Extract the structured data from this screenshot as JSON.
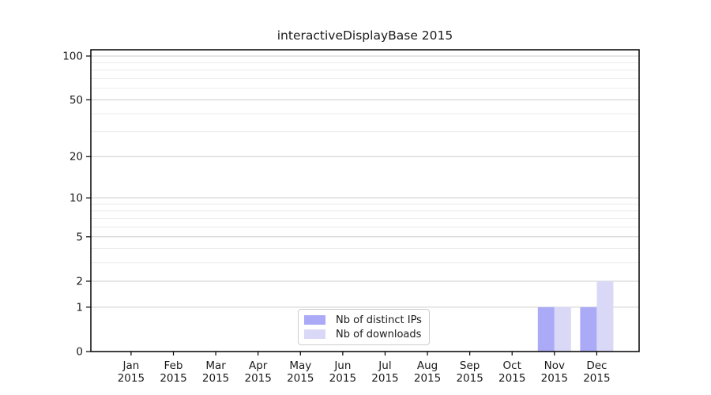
{
  "chart_data": {
    "type": "bar",
    "title": "interactiveDisplayBase 2015",
    "categories": [
      "Jan",
      "Feb",
      "Mar",
      "Apr",
      "May",
      "Jun",
      "Jul",
      "Aug",
      "Sep",
      "Oct",
      "Nov",
      "Dec"
    ],
    "category_year": "2015",
    "series": [
      {
        "name": "Nb of distinct IPs",
        "color": "#aaaaf7",
        "values": [
          0,
          0,
          0,
          0,
          0,
          0,
          0,
          0,
          0,
          0,
          1,
          1
        ]
      },
      {
        "name": "Nb of downloads",
        "color": "#d9d9f7",
        "values": [
          0,
          0,
          0,
          0,
          0,
          0,
          0,
          0,
          0,
          0,
          1,
          2
        ]
      }
    ],
    "y_axis": {
      "scale": "log1p",
      "ticks": [
        0,
        1,
        2,
        5,
        10,
        20,
        50,
        100
      ],
      "minor_ticks": [
        3,
        4,
        6,
        7,
        8,
        9,
        30,
        40,
        60,
        70,
        80,
        90
      ],
      "max": 110.4
    },
    "legend": {
      "position": "lower-center"
    },
    "grid": true,
    "colors": {
      "major_grid": "#cccccc",
      "minor_grid": "#ececec",
      "axis": "#000000",
      "text": "#1a1a1a",
      "background": "#ffffff"
    }
  }
}
